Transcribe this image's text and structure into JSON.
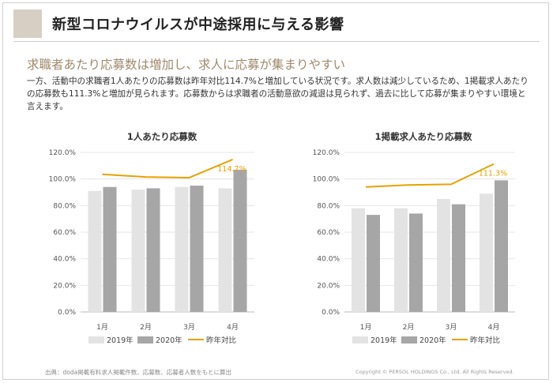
{
  "page": {
    "title": "新型コロナウイルスが中途採用に与える影響",
    "subheading": "求職者あたり応募数は増加し、求人に応募が集まりやすい",
    "body": "一方、活動中の求職者1人あたりの応募数は昨年対比114.7%と増加している状況です。求人数は減少しているため、1掲載求人あたりの応募数も111.3%と増加が見られます。応募数からは求職者の活動意欲の減退は見られず、過去に比して応募が集まりやすい環境と言えます。",
    "source": "出典：doda掲載有料求人掲載件数、応募数、応募者人数をもとに算出",
    "copyright": "Copyright © PERSOL HOLDINGS Co., Ltd. All Rights Reserved."
  },
  "colors": {
    "bar_2019": "#e3e3e3",
    "bar_2020": "#a6a6a6",
    "line": "#e8a200",
    "accent": "#a08a6c",
    "square": "#d7cfc4"
  },
  "chart_data": [
    {
      "type": "bar",
      "title": "1人あたり応募数",
      "categories": [
        "1月",
        "2月",
        "3月",
        "4月"
      ],
      "series": [
        {
          "name": "2019年",
          "kind": "bar",
          "values": [
            91,
            92,
            94,
            93
          ]
        },
        {
          "name": "2020年",
          "kind": "bar",
          "values": [
            94,
            93,
            95,
            107
          ]
        },
        {
          "name": "昨年対比",
          "kind": "line",
          "values": [
            103.5,
            101.5,
            101.0,
            114.7
          ]
        }
      ],
      "annotation": "114.7%",
      "ylim": [
        0,
        120
      ],
      "yticks": [
        "0.0%",
        "20.0%",
        "40.0%",
        "60.0%",
        "80.0%",
        "100.0%",
        "120.0%"
      ],
      "legend": "bottom"
    },
    {
      "type": "bar",
      "title": "1掲載求人あたり応募数",
      "categories": [
        "1月",
        "2月",
        "3月",
        "4月"
      ],
      "series": [
        {
          "name": "2019年",
          "kind": "bar",
          "values": [
            78,
            78,
            85,
            89
          ]
        },
        {
          "name": "2020年",
          "kind": "bar",
          "values": [
            73,
            74,
            81,
            99
          ]
        },
        {
          "name": "昨年対比",
          "kind": "line",
          "values": [
            94,
            95.5,
            96,
            111.3
          ]
        }
      ],
      "annotation": "111.3%",
      "ylim": [
        0,
        120
      ],
      "yticks": [
        "0.0%",
        "20.0%",
        "40.0%",
        "60.0%",
        "80.0%",
        "100.0%",
        "120.0%"
      ],
      "legend": "bottom"
    }
  ]
}
